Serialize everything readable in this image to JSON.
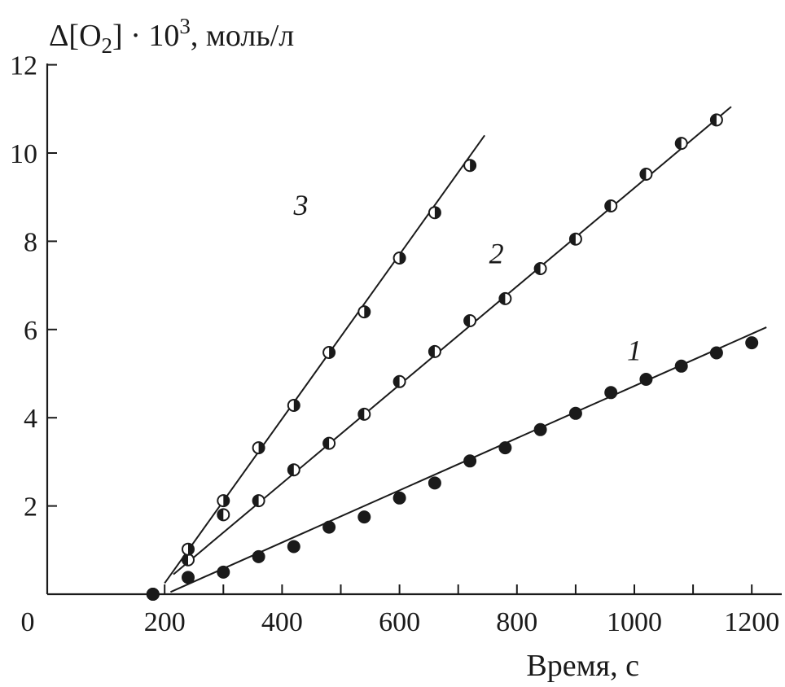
{
  "chart_data": {
    "type": "scatter",
    "title": "",
    "ylabel_parts": {
      "delta": "Δ[O",
      "sub": "2",
      "mid": "] · 10",
      "sup": "3",
      "tail": ", моль/л"
    },
    "xlabel": "Время, с",
    "xlim": [
      0,
      1250
    ],
    "ylim": [
      0,
      12
    ],
    "x_ticks": [
      200,
      400,
      600,
      800,
      1000,
      1200
    ],
    "y_ticks": [
      2,
      4,
      6,
      8,
      10,
      12
    ],
    "origin_label": "0",
    "grid": false,
    "series": [
      {
        "name": "1",
        "marker": "filled",
        "x": [
          180,
          240,
          300,
          360,
          420,
          480,
          540,
          600,
          660,
          720,
          780,
          840,
          900,
          960,
          1020,
          1080,
          1140,
          1200
        ],
        "y": [
          0,
          0.38,
          0.5,
          0.85,
          1.08,
          1.52,
          1.75,
          2.18,
          2.52,
          3.02,
          3.32,
          3.73,
          4.1,
          4.57,
          4.87,
          5.17,
          5.47,
          5.7
        ],
        "fit_line": {
          "x": [
            210,
            1225
          ],
          "y": [
            0.05,
            6.05
          ]
        }
      },
      {
        "name": "2",
        "marker": "half-left",
        "x": [
          180,
          240,
          300,
          360,
          420,
          480,
          540,
          600,
          660,
          720,
          780,
          840,
          900,
          960,
          1020,
          1080,
          1140
        ],
        "y": [
          0,
          0.78,
          1.8,
          2.12,
          2.82,
          3.42,
          4.08,
          4.82,
          5.5,
          6.2,
          6.7,
          7.38,
          8.05,
          8.8,
          9.52,
          10.22,
          10.75
        ],
        "fit_line": {
          "x": [
            215,
            1165
          ],
          "y": [
            0.45,
            11.05
          ]
        }
      },
      {
        "name": "3",
        "marker": "half-right",
        "x": [
          180,
          240,
          300,
          360,
          420,
          480,
          540,
          600,
          660,
          720
        ],
        "y": [
          0,
          1.02,
          2.12,
          3.32,
          4.28,
          5.48,
          6.4,
          7.62,
          8.65,
          9.72
        ],
        "fit_line": {
          "x": [
            200,
            745
          ],
          "y": [
            0.25,
            10.4
          ]
        }
      }
    ],
    "series_label_positions": [
      {
        "name": "1",
        "x": 1000,
        "y": 5.3
      },
      {
        "name": "2",
        "x": 765,
        "y": 7.5
      },
      {
        "name": "3",
        "x": 432,
        "y": 8.6
      }
    ]
  }
}
